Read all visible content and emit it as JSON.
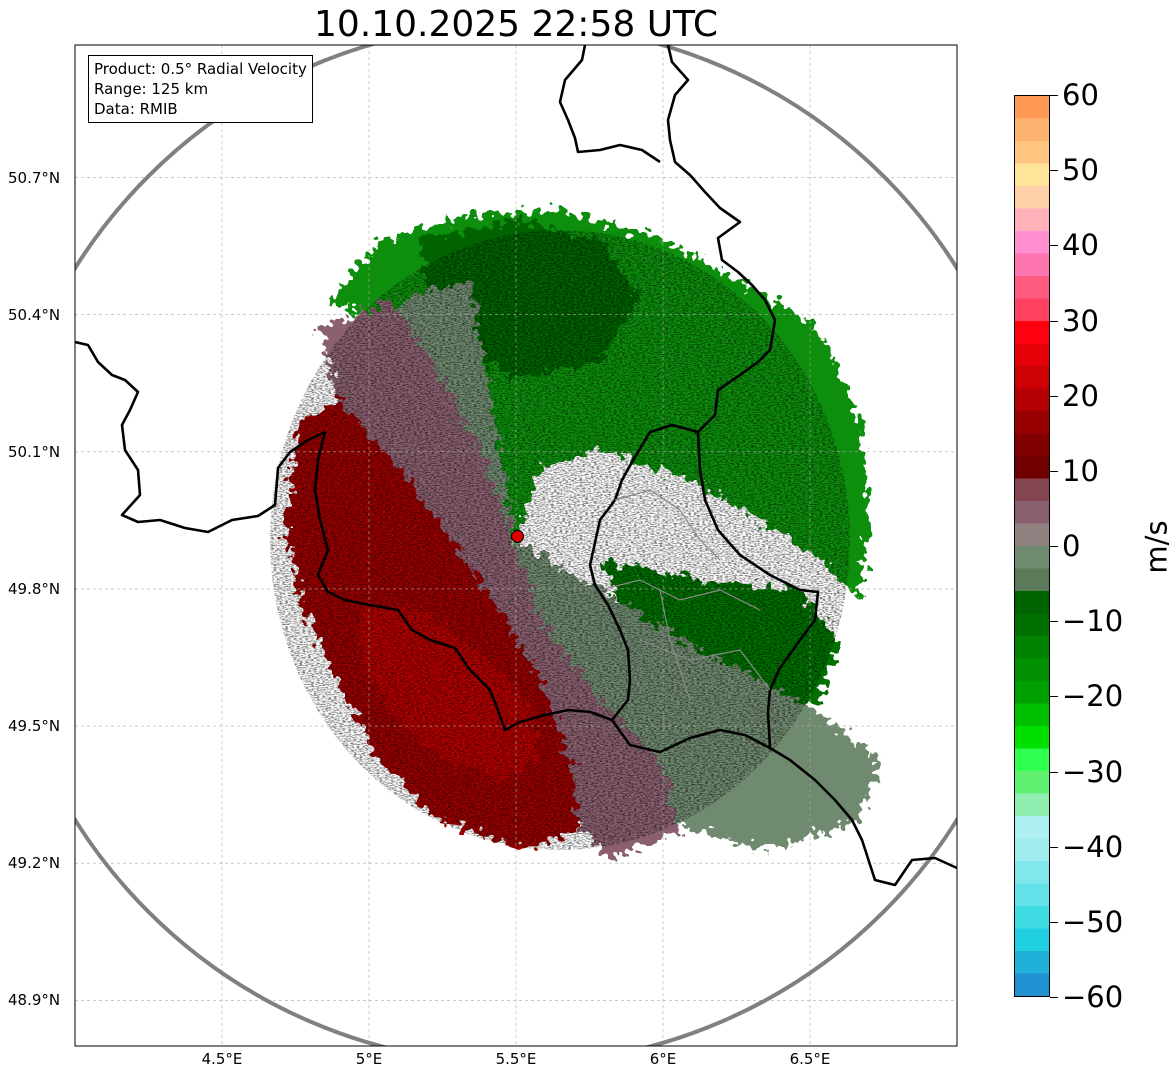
{
  "title": "10.10.2025 22:58 UTC",
  "info_box": {
    "product": "Product: 0.5° Radial Velocity",
    "range": "Range: 125 km",
    "data_source": "Data: RMIB"
  },
  "axes": {
    "lat_labels": [
      "50.7°N",
      "50.4°N",
      "50.1°N",
      "49.8°N",
      "49.5°N",
      "49.2°N",
      "48.9°N"
    ],
    "lon_labels": [
      "4.5°E",
      "5°E",
      "5.5°E",
      "6°E",
      "6.5°E"
    ],
    "lat_values": [
      50.7,
      50.4,
      50.1,
      49.8,
      49.5,
      49.2,
      48.9
    ],
    "lon_values": [
      4.5,
      5.0,
      5.5,
      6.0,
      6.5
    ],
    "lat_range": [
      48.8,
      50.99
    ],
    "lon_range": [
      4.0,
      7.0
    ]
  },
  "radar_site": {
    "lon": 5.505,
    "lat": 49.915
  },
  "colorbar": {
    "unit": "m/s",
    "ticks": [
      "60",
      "50",
      "40",
      "30",
      "20",
      "10",
      "0",
      "−10",
      "−20",
      "−30",
      "−40",
      "−50",
      "−60"
    ],
    "tick_values": [
      60,
      50,
      40,
      30,
      20,
      10,
      0,
      -10,
      -20,
      -30,
      -40,
      -50,
      -60
    ],
    "min": -60,
    "max": 60,
    "colors_top_to_bottom": [
      "#ff9a55",
      "#ffb370",
      "#ffc580",
      "#ffe49a",
      "#ffcfa8",
      "#ffb0b8",
      "#ff8fd0",
      "#ff75b0",
      "#ff5a80",
      "#ff4060",
      "#ff0010",
      "#e50008",
      "#cc0005",
      "#b30003",
      "#9a0002",
      "#820001",
      "#700000",
      "#844450",
      "#8a6070",
      "#908080",
      "#6f8a6f",
      "#5a7a5a",
      "#006400",
      "#007000",
      "#008200",
      "#009000",
      "#00a000",
      "#00c000",
      "#00e000",
      "#30ff50",
      "#60f070",
      "#90eeb0",
      "#b0f0f0",
      "#a0ecee",
      "#80e8ec",
      "#60e2e8",
      "#40dce4",
      "#20d0e0",
      "#20b0d8",
      "#2090d0"
    ]
  },
  "colors": {
    "range_ring": "#808080",
    "border": "#000000",
    "inbound_red": "#a00000",
    "outbound_green": "#008800",
    "zero_gray": "#6f8a6f",
    "radar_marker": "#e00000"
  }
}
